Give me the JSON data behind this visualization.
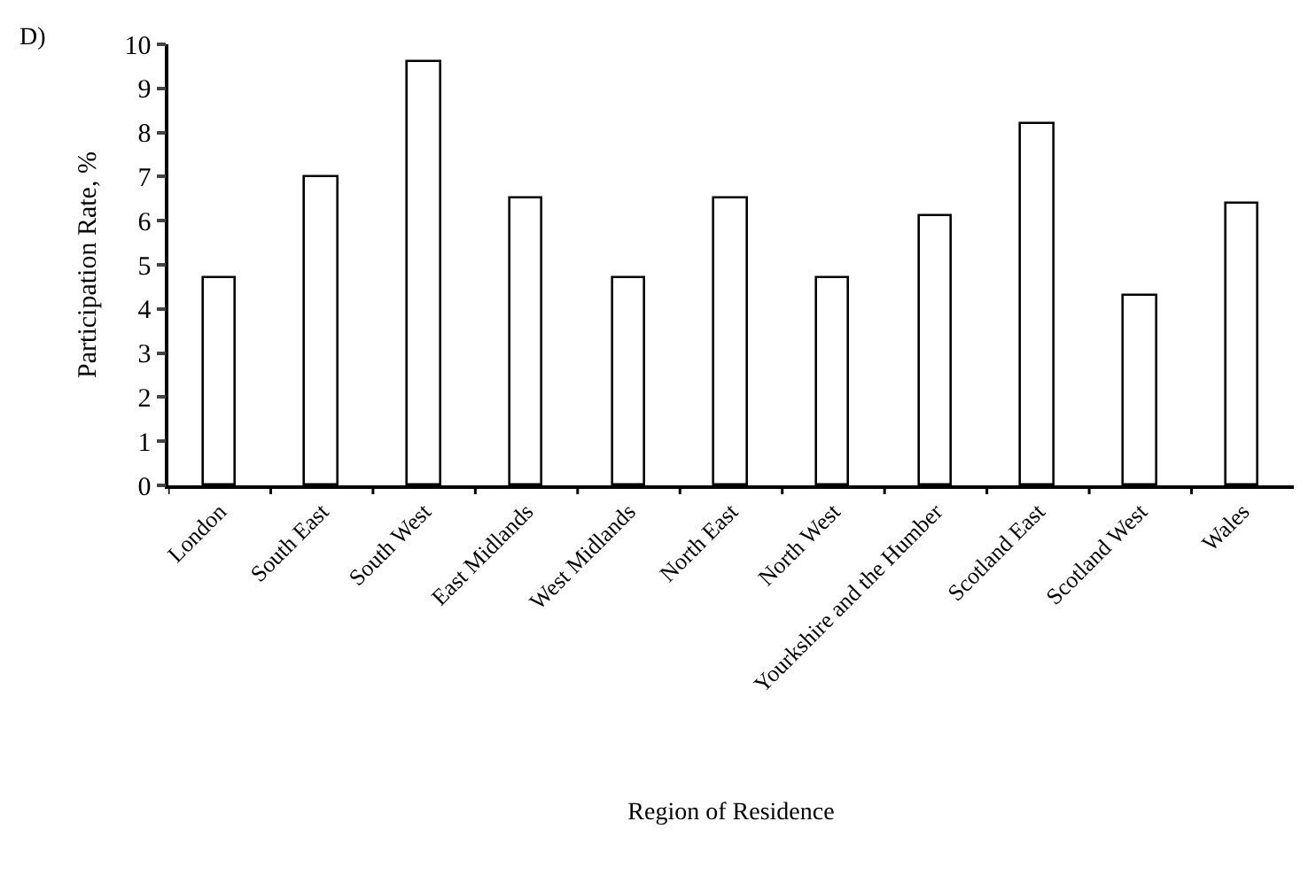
{
  "chart_data": {
    "type": "bar",
    "annotations": [
      "D)"
    ],
    "xlabel": "Region of Residence",
    "ylabel": "Participation Rate, %",
    "categories": [
      "London",
      "South East",
      "South West",
      "East Midlands",
      "West Midlands",
      "North East",
      "North West",
      "Yourkshire and the Humber",
      "Scotland East",
      "Scotland West",
      "Wales"
    ],
    "values": [
      4.7,
      7.0,
      9.6,
      6.5,
      4.7,
      6.5,
      4.7,
      6.1,
      8.2,
      4.3,
      6.4
    ],
    "color": "#ffffff",
    "ylim": [
      0,
      10
    ],
    "yticks": [
      0,
      1,
      2,
      3,
      4,
      5,
      6,
      7,
      8,
      9,
      10
    ],
    "grid": false
  }
}
